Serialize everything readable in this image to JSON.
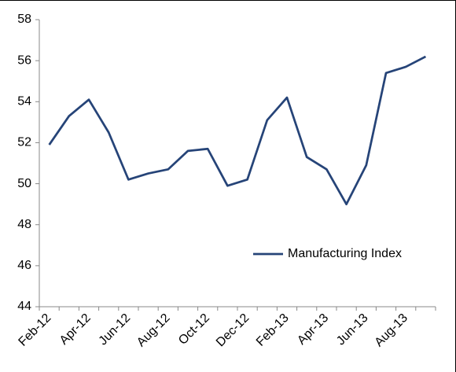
{
  "chart_data": {
    "type": "line",
    "categories": [
      "Feb-12",
      null,
      "Apr-12",
      null,
      "Jun-12",
      null,
      "Aug-12",
      null,
      "Oct-12",
      null,
      "Dec-12",
      null,
      "Feb-13",
      null,
      "Apr-13",
      null,
      "Jun-13",
      null,
      "Aug-13",
      null
    ],
    "series": [
      {
        "name": "Manufacturing Index",
        "color": "#264478",
        "values": [
          51.9,
          53.3,
          54.1,
          52.5,
          50.2,
          50.5,
          50.7,
          51.6,
          51.7,
          49.9,
          50.2,
          53.1,
          54.2,
          51.3,
          50.7,
          49.0,
          50.9,
          55.4,
          55.7,
          56.2
        ]
      }
    ],
    "ylim": [
      44,
      58
    ],
    "yticks": [
      44,
      46,
      48,
      50,
      52,
      54,
      56,
      58
    ],
    "grid": false,
    "legend": "right"
  }
}
